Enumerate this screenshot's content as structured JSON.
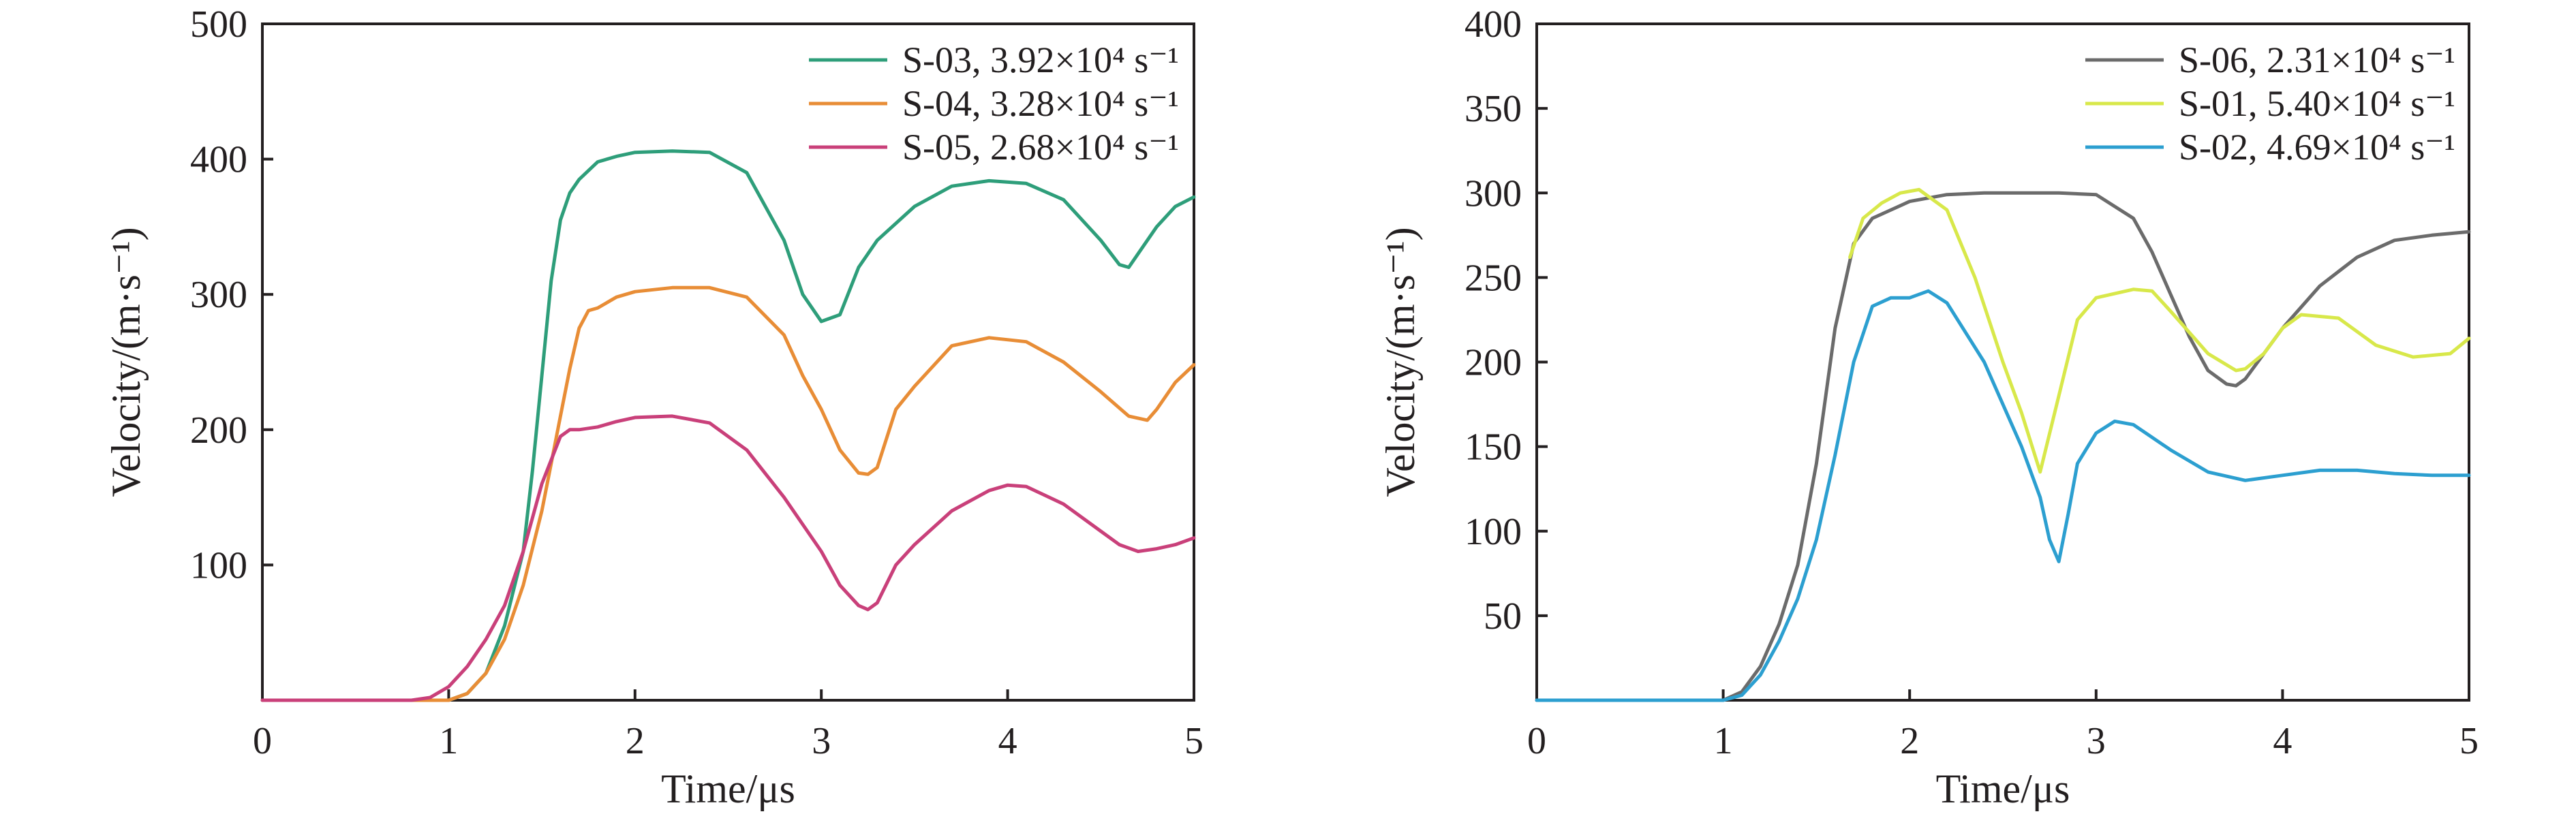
{
  "chart_data": [
    {
      "type": "line",
      "xlabel": "Time/μs",
      "ylabel": "Velocity/(m·s⁻¹)",
      "xlim": [
        0,
        5
      ],
      "ylim": [
        0,
        500
      ],
      "xticks": [
        "0",
        "1",
        "2",
        "3",
        "4",
        "5"
      ],
      "yticks": [
        "100",
        "200",
        "300",
        "400",
        "500"
      ],
      "legend_position": "top-right",
      "series": [
        {
          "name": "S-03, 3.92×10⁴ s⁻¹",
          "color": "#2e9e7a",
          "x": [
            0,
            0.9,
            1.0,
            1.1,
            1.2,
            1.3,
            1.4,
            1.45,
            1.5,
            1.55,
            1.6,
            1.65,
            1.7,
            1.8,
            1.9,
            2.0,
            2.2,
            2.4,
            2.6,
            2.8,
            2.9,
            3.0,
            3.1,
            3.2,
            3.3,
            3.5,
            3.7,
            3.9,
            4.1,
            4.3,
            4.5,
            4.6,
            4.65,
            4.7,
            4.8,
            4.9,
            5.0
          ],
          "y": [
            0,
            0,
            0,
            5,
            20,
            55,
            110,
            170,
            240,
            310,
            355,
            375,
            385,
            398,
            402,
            405,
            406,
            405,
            390,
            340,
            300,
            280,
            285,
            320,
            340,
            365,
            380,
            384,
            382,
            370,
            340,
            322,
            320,
            330,
            350,
            365,
            372
          ]
        },
        {
          "name": "S-04, 3.28×10⁴ s⁻¹",
          "color": "#e88d36",
          "x": [
            0,
            1.0,
            1.1,
            1.2,
            1.3,
            1.4,
            1.5,
            1.55,
            1.6,
            1.65,
            1.7,
            1.75,
            1.8,
            1.9,
            2.0,
            2.2,
            2.4,
            2.6,
            2.8,
            2.9,
            3.0,
            3.1,
            3.2,
            3.25,
            3.3,
            3.4,
            3.5,
            3.7,
            3.9,
            4.1,
            4.3,
            4.5,
            4.65,
            4.75,
            4.8,
            4.9,
            5.0
          ],
          "y": [
            0,
            0,
            5,
            20,
            45,
            85,
            140,
            175,
            210,
            245,
            275,
            288,
            290,
            298,
            302,
            305,
            305,
            298,
            270,
            240,
            215,
            185,
            168,
            167,
            172,
            215,
            232,
            262,
            268,
            265,
            250,
            228,
            210,
            207,
            215,
            235,
            248
          ]
        },
        {
          "name": "S-05, 2.68×10⁴ s⁻¹",
          "color": "#c9407a",
          "x": [
            0,
            0.8,
            0.9,
            1.0,
            1.1,
            1.2,
            1.3,
            1.4,
            1.5,
            1.6,
            1.65,
            1.7,
            1.8,
            1.9,
            2.0,
            2.2,
            2.4,
            2.6,
            2.8,
            3.0,
            3.1,
            3.2,
            3.25,
            3.3,
            3.4,
            3.5,
            3.7,
            3.9,
            4.0,
            4.1,
            4.3,
            4.5,
            4.6,
            4.7,
            4.8,
            4.9,
            5.0
          ],
          "y": [
            0,
            0,
            2,
            10,
            25,
            45,
            70,
            110,
            160,
            195,
            200,
            200,
            202,
            206,
            209,
            210,
            205,
            185,
            150,
            110,
            85,
            70,
            67,
            72,
            100,
            115,
            140,
            155,
            159,
            158,
            145,
            125,
            115,
            110,
            112,
            115,
            120
          ]
        }
      ]
    },
    {
      "type": "line",
      "xlabel": "Time/μs",
      "ylabel": "Velocity/(m·s⁻¹)",
      "xlim": [
        0,
        5
      ],
      "ylim": [
        0,
        400
      ],
      "xticks": [
        "0",
        "1",
        "2",
        "3",
        "4",
        "5"
      ],
      "yticks": [
        "50",
        "100",
        "150",
        "200",
        "250",
        "300",
        "350",
        "400"
      ],
      "legend_position": "top-right",
      "series": [
        {
          "name": "S-06, 2.31×10⁴ s⁻¹",
          "color": "#6b6b6b",
          "x": [
            0,
            1.0,
            1.1,
            1.2,
            1.3,
            1.4,
            1.5,
            1.6,
            1.7,
            1.8,
            1.9,
            2.0,
            2.2,
            2.4,
            2.6,
            2.8,
            3.0,
            3.2,
            3.3,
            3.4,
            3.5,
            3.6,
            3.7,
            3.75,
            3.8,
            3.9,
            4.0,
            4.2,
            4.4,
            4.6,
            4.8,
            5.0
          ],
          "y": [
            0,
            0,
            5,
            20,
            45,
            80,
            140,
            220,
            270,
            285,
            290,
            295,
            299,
            300,
            300,
            300,
            299,
            285,
            265,
            240,
            215,
            195,
            187,
            186,
            190,
            205,
            220,
            245,
            262,
            272,
            275,
            277
          ]
        },
        {
          "name": "S-01, 5.40×10⁴ s⁻¹",
          "color": "#d8e84a",
          "x": [
            1.68,
            1.75,
            1.85,
            1.95,
            2.05,
            2.2,
            2.35,
            2.5,
            2.6,
            2.7,
            2.8,
            2.9,
            3.0,
            3.2,
            3.3,
            3.4,
            3.6,
            3.75,
            3.8,
            3.9,
            4.0,
            4.1,
            4.3,
            4.5,
            4.7,
            4.9,
            5.0
          ],
          "y": [
            262,
            285,
            294,
            300,
            302,
            290,
            250,
            200,
            170,
            135,
            180,
            225,
            238,
            243,
            242,
            230,
            205,
            195,
            196,
            205,
            220,
            228,
            226,
            210,
            203,
            205,
            214
          ]
        },
        {
          "name": "S-02, 4.69×10⁴ s⁻¹",
          "color": "#2c9fd0",
          "x": [
            0,
            1.0,
            1.1,
            1.2,
            1.3,
            1.4,
            1.5,
            1.6,
            1.7,
            1.8,
            1.9,
            2.0,
            2.1,
            2.2,
            2.4,
            2.6,
            2.7,
            2.75,
            2.8,
            2.85,
            2.9,
            3.0,
            3.1,
            3.2,
            3.4,
            3.6,
            3.8,
            4.0,
            4.2,
            4.4,
            4.6,
            4.8,
            5.0
          ],
          "y": [
            0,
            0,
            3,
            15,
            35,
            60,
            95,
            145,
            200,
            233,
            238,
            238,
            242,
            235,
            200,
            150,
            120,
            95,
            82,
            110,
            140,
            158,
            165,
            163,
            148,
            135,
            130,
            133,
            136,
            136,
            134,
            133,
            133
          ]
        }
      ]
    }
  ]
}
